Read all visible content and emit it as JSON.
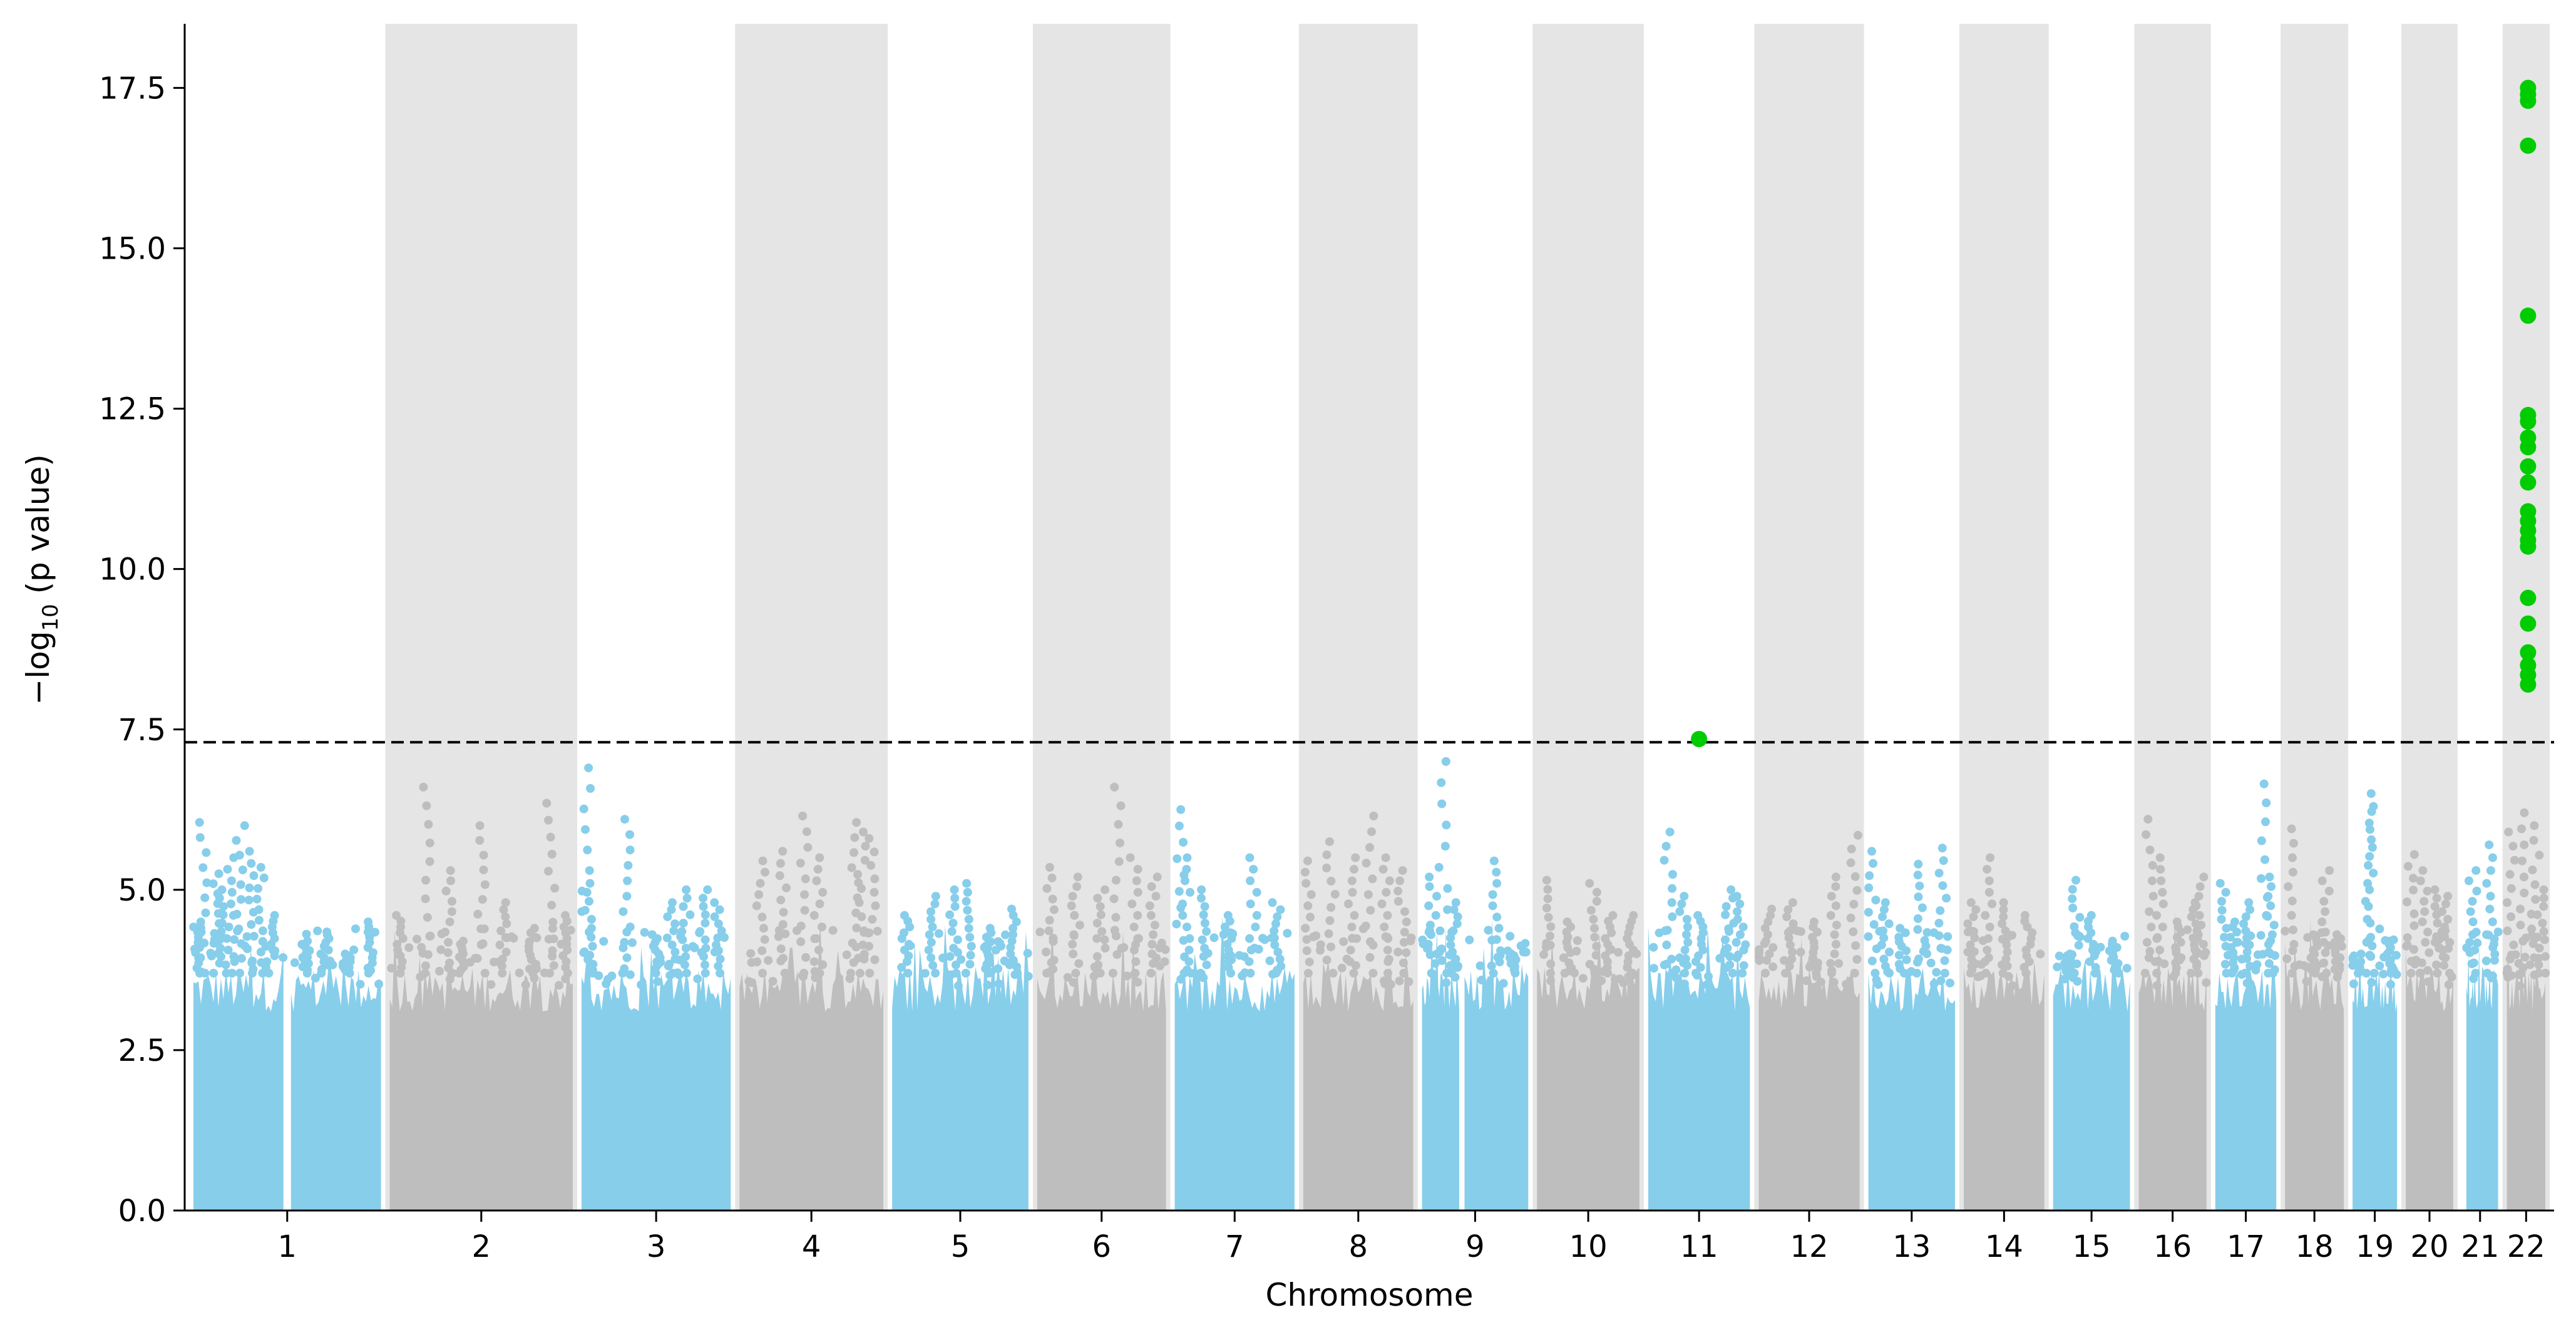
{
  "chart_data": {
    "type": "scatter",
    "subtype": "manhattan",
    "title": "",
    "xlabel": "Chromosome",
    "ylabel": {
      "prefix": "−log",
      "subscript": "10",
      "suffix": " (p value)"
    },
    "ylim": [
      0,
      18.5
    ],
    "yticks": [
      "0.0",
      "2.5",
      "5.0",
      "7.5",
      "10.0",
      "12.5",
      "15.0",
      "17.5"
    ],
    "threshold": 7.3,
    "grid": false,
    "legend": "none",
    "colors": {
      "odd": "#87CEEB",
      "even": "#BEBEBE",
      "band": "#E5E5E5",
      "hit": "#00CC00",
      "threshold": "#000000"
    },
    "chromosomes": [
      {
        "label": "1",
        "length": 249,
        "shaded": false,
        "color": "odd",
        "peaks": [
          [
            0.02,
            4.5
          ],
          [
            0.05,
            6.05
          ],
          [
            0.12,
            5.25
          ],
          [
            0.16,
            5.0
          ],
          [
            0.2,
            5.5
          ],
          [
            0.25,
            6.0
          ],
          [
            0.3,
            5.6
          ],
          [
            0.36,
            5.35
          ],
          [
            0.41,
            4.6
          ],
          [
            0.6,
            4.2
          ],
          [
            0.7,
            4.3
          ],
          [
            0.82,
            4.0
          ],
          [
            0.95,
            4.5
          ]
        ],
        "gap": [
          0.48,
          0.52
        ]
      },
      {
        "label": "2",
        "length": 243,
        "shaded": true,
        "color": "even",
        "peaks": [
          [
            0.05,
            4.6
          ],
          [
            0.2,
            6.6
          ],
          [
            0.32,
            5.3
          ],
          [
            0.4,
            4.2
          ],
          [
            0.5,
            6.0
          ],
          [
            0.62,
            4.8
          ],
          [
            0.78,
            4.4
          ],
          [
            0.88,
            6.35
          ],
          [
            0.95,
            4.6
          ]
        ]
      },
      {
        "label": "3",
        "length": 198,
        "shaded": false,
        "color": "odd",
        "peaks": [
          [
            0.03,
            6.9
          ],
          [
            0.05,
            5.1
          ],
          [
            0.3,
            6.1
          ],
          [
            0.5,
            4.3
          ],
          [
            0.6,
            4.8
          ],
          [
            0.7,
            5.0
          ],
          [
            0.82,
            5.0
          ],
          [
            0.92,
            4.8
          ]
        ]
      },
      {
        "label": "4",
        "length": 191,
        "shaded": true,
        "color": "even",
        "peaks": [
          [
            0.15,
            5.45
          ],
          [
            0.3,
            5.6
          ],
          [
            0.45,
            6.15
          ],
          [
            0.55,
            5.5
          ],
          [
            0.8,
            6.05
          ],
          [
            0.85,
            5.9
          ],
          [
            0.92,
            5.8
          ]
        ]
      },
      {
        "label": "5",
        "length": 181,
        "shaded": false,
        "color": "odd",
        "peaks": [
          [
            0.1,
            4.6
          ],
          [
            0.3,
            4.9
          ],
          [
            0.45,
            5.0
          ],
          [
            0.55,
            5.1
          ],
          [
            0.7,
            4.4
          ],
          [
            0.9,
            4.7
          ]
        ]
      },
      {
        "label": "6",
        "length": 171,
        "shaded": true,
        "color": "even",
        "peaks": [
          [
            0.1,
            5.35
          ],
          [
            0.3,
            5.2
          ],
          [
            0.5,
            5.0
          ],
          [
            0.62,
            6.6
          ],
          [
            0.75,
            5.5
          ],
          [
            0.9,
            5.2
          ]
        ]
      },
      {
        "label": "7",
        "length": 159,
        "shaded": false,
        "color": "odd",
        "peaks": [
          [
            0.05,
            6.25
          ],
          [
            0.1,
            5.5
          ],
          [
            0.25,
            5.0
          ],
          [
            0.45,
            4.6
          ],
          [
            0.65,
            5.5
          ],
          [
            0.85,
            4.8
          ]
        ]
      },
      {
        "label": "8",
        "length": 146,
        "shaded": true,
        "color": "even",
        "peaks": [
          [
            0.05,
            5.45
          ],
          [
            0.25,
            5.75
          ],
          [
            0.45,
            5.5
          ],
          [
            0.6,
            6.15
          ],
          [
            0.75,
            5.5
          ],
          [
            0.9,
            5.3
          ]
        ]
      },
      {
        "label": "9",
        "length": 141,
        "shaded": false,
        "color": "odd",
        "peaks": [
          [
            0.1,
            5.2
          ],
          [
            0.2,
            7.0
          ],
          [
            0.3,
            4.8
          ],
          [
            0.7,
            5.45
          ],
          [
            0.85,
            4.0
          ]
        ],
        "gap": [
          0.35,
          0.4
        ]
      },
      {
        "label": "10",
        "length": 136,
        "shaded": true,
        "color": "even",
        "peaks": [
          [
            0.1,
            5.15
          ],
          [
            0.3,
            4.5
          ],
          [
            0.55,
            5.1
          ],
          [
            0.7,
            4.6
          ],
          [
            0.9,
            4.6
          ]
        ]
      },
      {
        "label": "11",
        "length": 135,
        "shaded": false,
        "color": "odd",
        "peaks": [
          [
            0.2,
            5.9
          ],
          [
            0.35,
            4.9
          ],
          [
            0.5,
            4.6
          ],
          [
            0.8,
            5.0
          ],
          [
            0.9,
            4.9
          ]
        ]
      },
      {
        "label": "12",
        "length": 134,
        "shaded": true,
        "color": "even",
        "peaks": [
          [
            0.1,
            4.7
          ],
          [
            0.3,
            4.8
          ],
          [
            0.55,
            4.5
          ],
          [
            0.75,
            5.2
          ],
          [
            0.95,
            5.85
          ]
        ]
      },
      {
        "label": "13",
        "length": 115,
        "shaded": false,
        "color": "odd",
        "peaks": [
          [
            0.05,
            5.6
          ],
          [
            0.2,
            4.8
          ],
          [
            0.4,
            4.4
          ],
          [
            0.6,
            5.4
          ],
          [
            0.85,
            5.65
          ]
        ]
      },
      {
        "label": "14",
        "length": 107,
        "shaded": true,
        "color": "even",
        "peaks": [
          [
            0.1,
            4.8
          ],
          [
            0.3,
            5.5
          ],
          [
            0.5,
            4.8
          ],
          [
            0.8,
            4.6
          ]
        ]
      },
      {
        "label": "15",
        "length": 102,
        "shaded": false,
        "color": "odd",
        "peaks": [
          [
            0.2,
            4.0
          ],
          [
            0.3,
            5.15
          ],
          [
            0.5,
            4.6
          ],
          [
            0.8,
            4.2
          ]
        ]
      },
      {
        "label": "16",
        "length": 90,
        "shaded": true,
        "color": "even",
        "peaks": [
          [
            0.15,
            6.1
          ],
          [
            0.3,
            5.5
          ],
          [
            0.6,
            4.5
          ],
          [
            0.8,
            4.8
          ],
          [
            0.9,
            5.2
          ]
        ]
      },
      {
        "label": "17",
        "length": 81,
        "shaded": false,
        "color": "odd",
        "peaks": [
          [
            0.15,
            5.1
          ],
          [
            0.3,
            4.5
          ],
          [
            0.5,
            4.8
          ],
          [
            0.8,
            6.65
          ],
          [
            0.9,
            5.2
          ]
        ]
      },
      {
        "label": "18",
        "length": 78,
        "shaded": true,
        "color": "even",
        "peaks": [
          [
            0.1,
            5.95
          ],
          [
            0.5,
            4.3
          ],
          [
            0.7,
            5.3
          ],
          [
            0.9,
            4.3
          ]
        ]
      },
      {
        "label": "19",
        "length": 59,
        "shaded": false,
        "color": "odd",
        "peaks": [
          [
            0.1,
            4.0
          ],
          [
            0.35,
            6.5
          ],
          [
            0.45,
            6.3
          ],
          [
            0.8,
            4.2
          ]
        ]
      },
      {
        "label": "20",
        "length": 63,
        "shaded": true,
        "color": "even",
        "peaks": [
          [
            0.1,
            5.55
          ],
          [
            0.4,
            5.3
          ],
          [
            0.7,
            5.0
          ],
          [
            0.85,
            4.9
          ]
        ]
      },
      {
        "label": "21",
        "length": 48,
        "shaded": false,
        "color": "odd",
        "peaks": [
          [
            0.3,
            5.3
          ],
          [
            0.8,
            5.7
          ]
        ],
        "gap": [
          0.0,
          0.12
        ]
      },
      {
        "label": "22",
        "length": 51,
        "shaded": true,
        "color": "even",
        "peaks": [
          [
            0.1,
            5.9
          ],
          [
            0.4,
            6.2
          ],
          [
            0.75,
            6.0
          ],
          [
            0.9,
            5.0
          ]
        ]
      }
    ],
    "hits": [
      {
        "chr": "11",
        "pos": 0.5,
        "y": 7.35
      },
      {
        "chr": "22",
        "pos": 0.55,
        "y": 17.5
      },
      {
        "chr": "22",
        "pos": 0.55,
        "y": 17.4
      },
      {
        "chr": "22",
        "pos": 0.55,
        "y": 17.3
      },
      {
        "chr": "22",
        "pos": 0.55,
        "y": 16.6
      },
      {
        "chr": "22",
        "pos": 0.55,
        "y": 13.95
      },
      {
        "chr": "22",
        "pos": 0.55,
        "y": 12.4
      },
      {
        "chr": "22",
        "pos": 0.55,
        "y": 12.3
      },
      {
        "chr": "22",
        "pos": 0.55,
        "y": 12.05
      },
      {
        "chr": "22",
        "pos": 0.55,
        "y": 11.9
      },
      {
        "chr": "22",
        "pos": 0.55,
        "y": 11.6
      },
      {
        "chr": "22",
        "pos": 0.55,
        "y": 11.35
      },
      {
        "chr": "22",
        "pos": 0.55,
        "y": 10.9
      },
      {
        "chr": "22",
        "pos": 0.55,
        "y": 10.75
      },
      {
        "chr": "22",
        "pos": 0.55,
        "y": 10.6
      },
      {
        "chr": "22",
        "pos": 0.55,
        "y": 10.45
      },
      {
        "chr": "22",
        "pos": 0.55,
        "y": 10.35
      },
      {
        "chr": "22",
        "pos": 0.55,
        "y": 9.55
      },
      {
        "chr": "22",
        "pos": 0.55,
        "y": 9.15
      },
      {
        "chr": "22",
        "pos": 0.55,
        "y": 8.7
      },
      {
        "chr": "22",
        "pos": 0.55,
        "y": 8.5
      },
      {
        "chr": "22",
        "pos": 0.55,
        "y": 8.35
      },
      {
        "chr": "22",
        "pos": 0.55,
        "y": 8.2
      }
    ]
  }
}
